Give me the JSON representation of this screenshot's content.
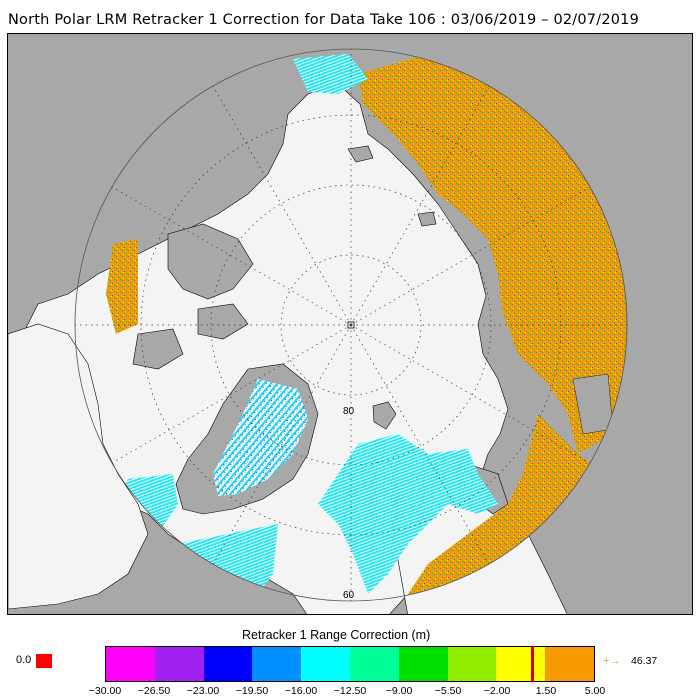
{
  "title": "North Polar LRM Retracker 1 Correction for Data Take 106 : 03/06/2019 – 02/07/2019",
  "map": {
    "lat_labels": [
      "80",
      "60"
    ],
    "colors": {
      "land": "#a8a8a8",
      "ocean": "#f4f4f4",
      "grid": "#333333",
      "track_orange": "#f59a00",
      "track_cyan": "#1fe8f0"
    }
  },
  "legend": {
    "title": "Retracker 1 Range Correction (m)",
    "under_label": "0.0",
    "under_color": "#ff0000",
    "over_value": "46.37",
    "over_arrow": "+→",
    "ticks": [
      "−30.00",
      "−26.50",
      "−23.00",
      "−19.50",
      "−16.00",
      "−12.50",
      "−9.00",
      "−5.50",
      "−2.00",
      "1.50",
      "5.00"
    ],
    "colors": [
      "#ff00ff",
      "#a020f0",
      "#0000ff",
      "#0090ff",
      "#00ffff",
      "#00ff99",
      "#00e000",
      "#90ee00",
      "#ffff00",
      "#f59a00"
    ],
    "marker_value": 0.5,
    "marker_color": "#cc0000"
  }
}
